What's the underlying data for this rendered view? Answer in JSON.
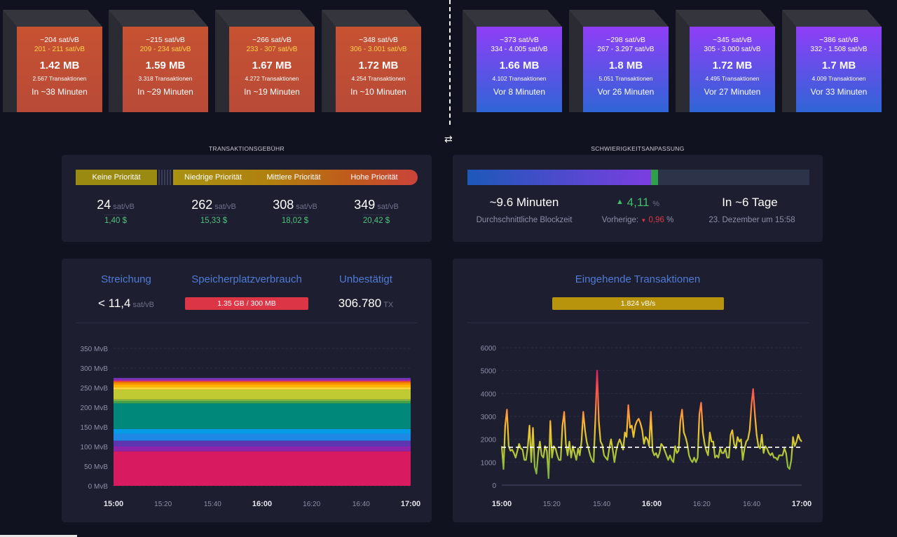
{
  "blocks": {
    "mempool": [
      {
        "fee": "~204 sat/vB",
        "range": "201 - 211 sat/vB",
        "size": "1.42 MB",
        "tx": "2.567 Transaktionen",
        "time": "In ~38 Minuten"
      },
      {
        "fee": "~215 sat/vB",
        "range": "209 - 234 sat/vB",
        "size": "1.59 MB",
        "tx": "3.318 Transaktionen",
        "time": "In ~29 Minuten"
      },
      {
        "fee": "~266 sat/vB",
        "range": "233 - 307 sat/vB",
        "size": "1.67 MB",
        "tx": "4.272 Transaktionen",
        "time": "In ~19 Minuten"
      },
      {
        "fee": "~348 sat/vB",
        "range": "306 - 3.001 sat/vB",
        "size": "1.72 MB",
        "tx": "4.254 Transaktionen",
        "time": "In ~10 Minuten"
      }
    ],
    "mined": [
      {
        "fee": "~373 sat/vB",
        "range": "334 - 4.005 sat/vB",
        "size": "1.66 MB",
        "tx": "4.102 Transaktionen",
        "time": "Vor 8 Minuten"
      },
      {
        "fee": "~298 sat/vB",
        "range": "267 - 3.297 sat/vB",
        "size": "1.8 MB",
        "tx": "5.051 Transaktionen",
        "time": "Vor 26 Minuten"
      },
      {
        "fee": "~345 sat/vB",
        "range": "305 - 3.000 sat/vB",
        "size": "1.72 MB",
        "tx": "4.495 Transaktionen",
        "time": "Vor 27 Minuten"
      },
      {
        "fee": "~386 sat/vB",
        "range": "332 - 1.508 sat/vB",
        "size": "1.7 MB",
        "tx": "4.009 Transaktionen",
        "time": "Vor 33 Minuten"
      }
    ]
  },
  "swap_icon": "⇄",
  "fees": {
    "title": "TRANSAKTIONSGEBÜHR",
    "priorities": [
      "Keine Priorität",
      "Niedrige Priorität",
      "Mittlere Priorität",
      "Hohe Priorität"
    ],
    "values": [
      "24",
      "262",
      "308",
      "349"
    ],
    "unit": "sat/vB",
    "usd": [
      "1,40 $",
      "15,33 $",
      "18,02 $",
      "20,42 $"
    ],
    "colors": {
      "none": "#9b8a12",
      "low": "#a89212",
      "mid": "#b8620f",
      "high": "#c9433a"
    }
  },
  "difficulty": {
    "title": "SCHWIERIGKEITSANPASSUNG",
    "progress": 0.537,
    "avg_block": "~9.6 Minuten",
    "avg_block_label": "Durchschnittliche Blockzeit",
    "change": "4,11",
    "change_unit": "%",
    "previous_label": "Vorherige:",
    "previous": "0,96",
    "previous_unit": "%",
    "eta": "In ~6 Tage",
    "eta_date": "23. Dezember um 15:58"
  },
  "mempool": {
    "purge_label": "Streichung",
    "purge_value": "< 11,4",
    "purge_unit": "sat/vB",
    "usage_label": "Speicherplatzverbrauch",
    "usage_value": "1.35 GB / 300 MB",
    "unconfirmed_label": "Unbestätigt",
    "unconfirmed_value": "306.780",
    "unconfirmed_unit": "TX"
  },
  "incoming": {
    "title": "Eingehende Transaktionen",
    "vbytes": "1.824 vB/s"
  },
  "chart_data": [
    {
      "type": "area",
      "title": "",
      "ylabel": "",
      "ylim": [
        0,
        350
      ],
      "yticks": [
        "0 MvB",
        "50 MvB",
        "100 MvB",
        "150 MvB",
        "200 MvB",
        "250 MvB",
        "300 MvB",
        "350 MvB"
      ],
      "xticks": [
        "15:00",
        "15:20",
        "15:40",
        "16:00",
        "16:20",
        "16:40",
        "17:00"
      ],
      "xticks_bold": [
        true,
        false,
        false,
        true,
        false,
        false,
        true
      ],
      "layers": [
        {
          "color": "#d81b60",
          "value": 88
        },
        {
          "color": "#8e24aa",
          "value": 12
        },
        {
          "color": "#5e35b1",
          "value": 15
        },
        {
          "color": "#1e88e5",
          "value": 18
        },
        {
          "color": "#039be5",
          "value": 12
        },
        {
          "color": "#00897b",
          "value": 65
        },
        {
          "color": "#43a047",
          "value": 6
        },
        {
          "color": "#7cb342",
          "value": 4
        },
        {
          "color": "#c0ca33",
          "value": 25
        },
        {
          "color": "#fdd835",
          "value": 6
        },
        {
          "color": "#ffb300",
          "value": 7
        },
        {
          "color": "#fb8c00",
          "value": 6
        },
        {
          "color": "#f4511e",
          "value": 3
        },
        {
          "color": "#9c27b0",
          "value": 5
        },
        {
          "color": "#673ab7",
          "value": 3
        }
      ]
    },
    {
      "type": "line",
      "title": "Eingehende Transaktionen",
      "ylim": [
        0,
        6000
      ],
      "yticks": [
        "0",
        "1000",
        "2000",
        "3000",
        "4000",
        "5000",
        "6000"
      ],
      "xticks": [
        "15:00",
        "15:20",
        "15:40",
        "16:00",
        "16:20",
        "16:40",
        "17:00"
      ],
      "xticks_bold": [
        true,
        false,
        false,
        true,
        false,
        false,
        true
      ],
      "reference": 1650,
      "series": [
        {
          "name": "vB/s",
          "values": [
            1700,
            700,
            2600,
            3300,
            1700,
            1500,
            1550,
            1400,
            1200,
            1500,
            1800,
            1600,
            1550,
            1100,
            1100,
            1650,
            2600,
            1000,
            2500,
            800,
            500,
            1400,
            1900,
            1300,
            1200,
            1700,
            1500,
            300,
            2800,
            1200,
            1700,
            1600,
            1300,
            1100,
            1100,
            2600,
            3200,
            1800,
            1300,
            1900,
            1200,
            1700,
            1400,
            1100,
            1600,
            1300,
            1900,
            3200,
            2400,
            1900,
            1600,
            1300,
            1100,
            1000,
            2900,
            5000,
            2800,
            1900,
            1750,
            1300,
            1200,
            1100,
            1600,
            2000,
            1550,
            1000,
            1500,
            1800,
            2000,
            1800,
            1550,
            2300,
            2100,
            3500,
            2500,
            2600,
            2100,
            2600,
            2800,
            2900,
            2700,
            2400,
            1800,
            2100,
            2000,
            1700,
            3200,
            1500,
            1300,
            1400,
            1200,
            1400,
            1800,
            1700,
            1500,
            1300,
            1100,
            1300,
            1100,
            1000,
            1700,
            1400,
            1500,
            2800,
            3300,
            2300,
            2100,
            1800,
            1300,
            1100,
            1000,
            1200,
            1000,
            1200,
            3100,
            3600,
            2300,
            1800,
            1500,
            1300,
            2300,
            1900,
            1900,
            1200,
            1300,
            1200,
            1600,
            1400,
            1400,
            1600,
            1200,
            1200,
            2200,
            2400,
            1800,
            1600,
            2100,
            1900,
            2000,
            1100,
            1600,
            1900,
            2000,
            2400,
            3500,
            4200,
            3100,
            2200,
            1700,
            1600,
            2200,
            1400,
            1700,
            1600,
            1400,
            1300,
            1400,
            1200,
            1200,
            1100,
            1300,
            1300,
            1300,
            1600,
            1400,
            800,
            700,
            1100,
            2100,
            1700,
            1900,
            2200,
            2000,
            1900
          ]
        }
      ]
    }
  ]
}
